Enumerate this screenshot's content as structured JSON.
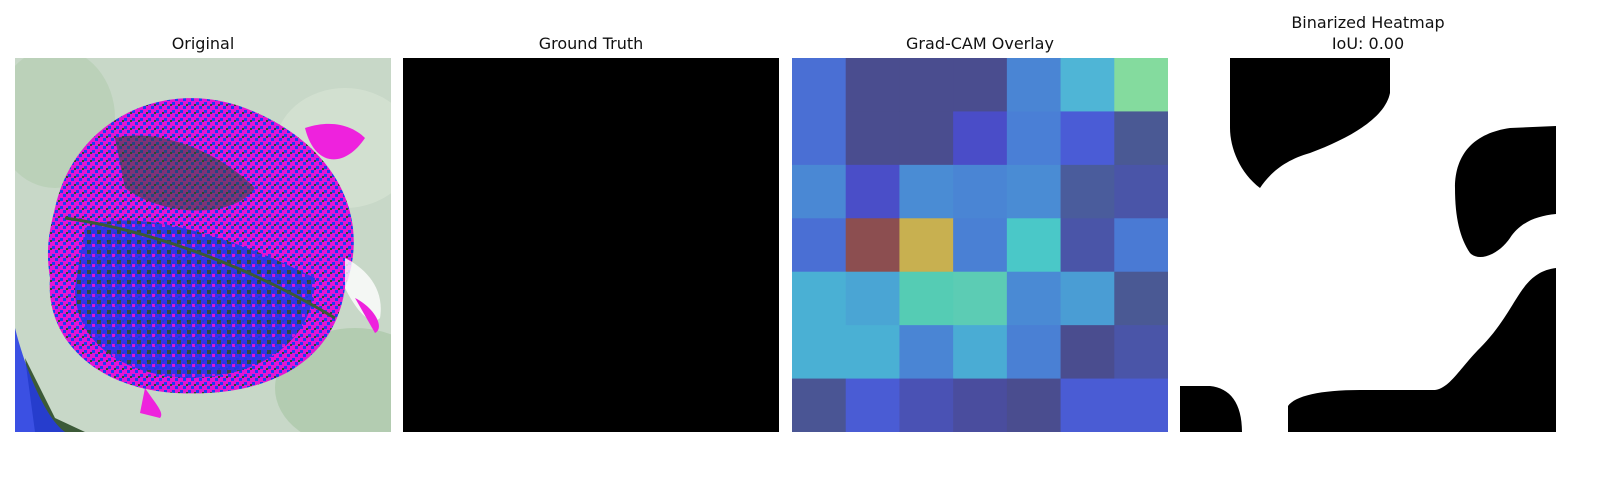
{
  "panels": {
    "original": {
      "title": "Original"
    },
    "ground_truth": {
      "title": "Ground Truth"
    },
    "gradcam": {
      "title": "Grad-CAM Overlay",
      "grid_colors": [
        [
          "#4a6fd4",
          "#4a4d8f",
          "#4a4d8f",
          "#4a4d8f",
          "#4a85d4",
          "#4fb5d6",
          "#84db9e"
        ],
        [
          "#4a6fd4",
          "#4a4d8f",
          "#4a4d8f",
          "#4a4dc8",
          "#4a7fd6",
          "#4a5cd6",
          "#4a5994"
        ],
        [
          "#4a88d4",
          "#4a4ec8",
          "#4a8cd4",
          "#4a85d4",
          "#4a8cd4",
          "#4a5c9c",
          "#4a55a8"
        ],
        [
          "#4a6fd4",
          "#8c4e50",
          "#c8b050",
          "#4a80d4",
          "#4ac8c8",
          "#4a55a8",
          "#4a7ad4"
        ],
        [
          "#4ab0d4",
          "#4aa5d4",
          "#55ccb4",
          "#5cccb4",
          "#4a8ad4",
          "#4a9dd4",
          "#4a5994"
        ],
        [
          "#4ab0d4",
          "#4ab0d4",
          "#4a85d4",
          "#4aacd4",
          "#4a80d4",
          "#4a4d8f",
          "#4a55a8"
        ],
        [
          "#4a5594",
          "#4a5cd4",
          "#4a52b4",
          "#4a4d9e",
          "#4a4d8f",
          "#4a5cd4",
          "#4a5cd4"
        ]
      ]
    },
    "binarized": {
      "title": "Binarized Heatmap",
      "iou_label": "IoU: 0.00"
    }
  }
}
